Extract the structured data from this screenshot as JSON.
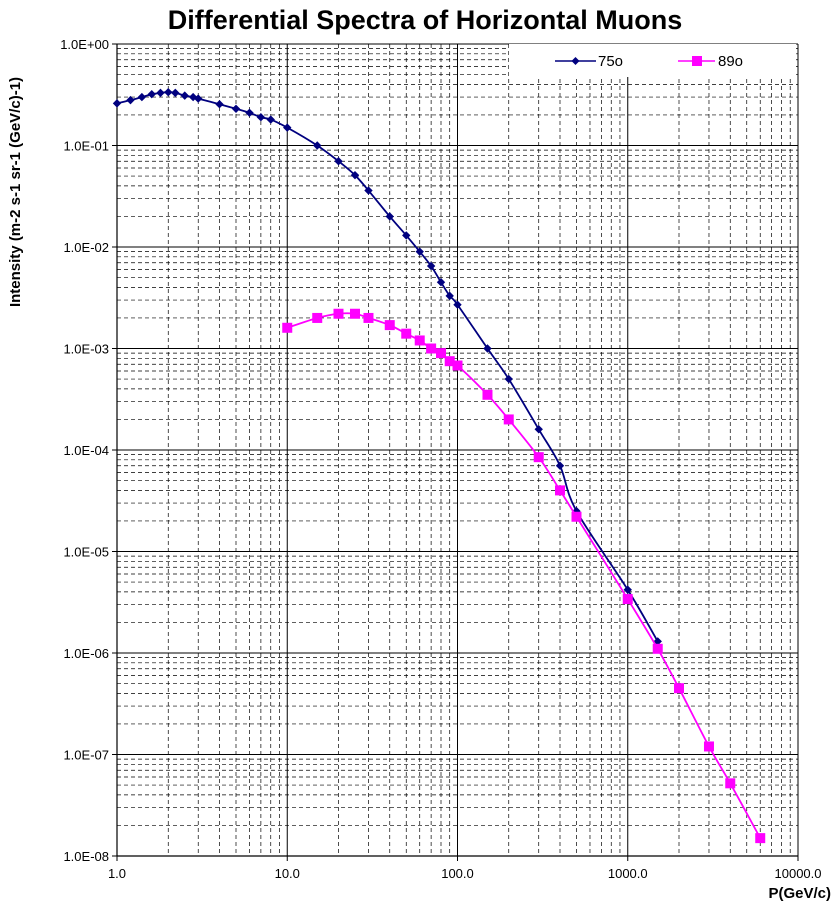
{
  "chart_data": {
    "type": "line",
    "title": "Differential Spectra of Horizontal Muons",
    "xlabel": "P(GeV/c)",
    "ylabel": "Intensity (m-2 s-1 sr-1 (GeV/c)-1)",
    "xscale": "log",
    "yscale": "log",
    "xlim": [
      1,
      10000
    ],
    "ylim": [
      1e-08,
      1
    ],
    "grid": true,
    "legend_position": "top-right",
    "x_tick_labels": [
      "1.0",
      "10.0",
      "100.0",
      "1000.0",
      "10000.0"
    ],
    "y_tick_labels": [
      "1.0E+00",
      "1.0E-01",
      "1.0E-02",
      "1.0E-03",
      "1.0E-04",
      "1.0E-05",
      "1.0E-06",
      "1.0E-07",
      "1.0E-08"
    ],
    "series": [
      {
        "name": "75o",
        "color": "#00007f",
        "marker": "diamond",
        "x": [
          1,
          1.2,
          1.4,
          1.6,
          1.8,
          2,
          2.2,
          2.5,
          2.8,
          3,
          4,
          5,
          6,
          7,
          8,
          10,
          15,
          20,
          25,
          30,
          40,
          50,
          60,
          70,
          80,
          90,
          100,
          150,
          200,
          300,
          400,
          500,
          1000,
          1500
        ],
        "values": [
          0.26,
          0.28,
          0.3,
          0.32,
          0.33,
          0.335,
          0.33,
          0.31,
          0.3,
          0.29,
          0.255,
          0.23,
          0.21,
          0.19,
          0.18,
          0.15,
          0.1,
          0.07,
          0.051,
          0.036,
          0.02,
          0.013,
          0.009,
          0.0065,
          0.0045,
          0.0033,
          0.0027,
          0.001,
          0.0005,
          0.00016,
          7e-05,
          2.5e-05,
          4.2e-06,
          1.3e-06
        ]
      },
      {
        "name": "89o",
        "color": "#ff00ff",
        "marker": "square",
        "x": [
          10,
          15,
          20,
          25,
          30,
          40,
          50,
          60,
          70,
          80,
          90,
          100,
          150,
          200,
          300,
          400,
          500,
          1000,
          1500,
          2000,
          3000,
          4000,
          6000
        ],
        "values": [
          0.0016,
          0.002,
          0.0022,
          0.0022,
          0.002,
          0.0017,
          0.0014,
          0.0012,
          0.001,
          0.0009,
          0.00075,
          0.00068,
          0.00035,
          0.0002,
          8.5e-05,
          4e-05,
          2.2e-05,
          3.4e-06,
          1.1e-06,
          4.5e-07,
          1.2e-07,
          5.2e-08,
          1.5e-08
        ]
      }
    ]
  }
}
